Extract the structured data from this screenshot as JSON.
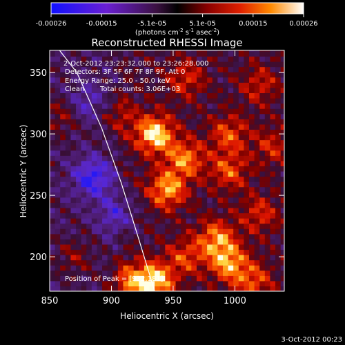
{
  "colorbar": {
    "ticks": [
      "-0.00026",
      "-0.00015",
      "-5.1e-05",
      "5.1e-05",
      "0.00015",
      "0.00026"
    ],
    "units_prefix": "(photons cm",
    "units_sup1": "-2",
    "units_mid": " s",
    "units_sup2": "-1",
    "units_suffix": " asec",
    "units_sup3": "-2",
    "units_close": ")",
    "colors": [
      "#1010ff",
      "#6a1fd2",
      "#4a1a5a",
      "#2a0000",
      "#8a0000",
      "#e01000",
      "#ff7a00",
      "#ffd040",
      "#ffffff"
    ]
  },
  "chart_data": {
    "type": "heatmap",
    "title": "Reconstructed RHESSI Image",
    "xlabel": "Heliocentric X (arcsec)",
    "ylabel": "Heliocentric Y (arcsec)",
    "xlim": [
      850,
      1040
    ],
    "ylim": [
      172,
      368
    ],
    "x_ticks": [
      850,
      900,
      950,
      1000
    ],
    "y_ticks": [
      200,
      250,
      300,
      350
    ],
    "value_range": [
      -0.00026,
      0.00026
    ],
    "limb_curve": [
      [
        935,
        172
      ],
      [
        922,
        215
      ],
      [
        908,
        260
      ],
      [
        892,
        305
      ],
      [
        872,
        350
      ],
      [
        858,
        368
      ]
    ],
    "peak_position": [
      932,
      181
    ],
    "annotations": {
      "time": "2-Oct-2012 23:23:32.000 to 23:26:28.000",
      "detectors": "Detectors: 3F 5F 6F 7F 8F 9F, Att 0",
      "energy": "Energy Range: 25.0 - 50.0 keV",
      "algorithm": "Clean",
      "counts": "Total counts: 3.06E+03",
      "peak": "Position of Peak = [932,181]"
    },
    "hotspots": [
      {
        "x": 935,
        "y": 300,
        "v": 1.0
      },
      {
        "x": 960,
        "y": 280,
        "v": 0.7
      },
      {
        "x": 945,
        "y": 255,
        "v": 0.8
      },
      {
        "x": 995,
        "y": 270,
        "v": 0.55
      },
      {
        "x": 995,
        "y": 300,
        "v": 0.55
      },
      {
        "x": 1020,
        "y": 235,
        "v": 0.45
      },
      {
        "x": 985,
        "y": 215,
        "v": 0.7
      },
      {
        "x": 995,
        "y": 195,
        "v": 0.75
      },
      {
        "x": 935,
        "y": 180,
        "v": 0.95
      },
      {
        "x": 960,
        "y": 200,
        "v": 0.5
      },
      {
        "x": 960,
        "y": 345,
        "v": 0.45
      },
      {
        "x": 1020,
        "y": 340,
        "v": 0.4
      },
      {
        "x": 1030,
        "y": 290,
        "v": 0.4
      },
      {
        "x": 905,
        "y": 315,
        "v": 0.35
      },
      {
        "x": 915,
        "y": 180,
        "v": 0.6
      },
      {
        "x": 1015,
        "y": 180,
        "v": 0.55
      },
      {
        "x": 870,
        "y": 200,
        "v": 0.3
      },
      {
        "x": 860,
        "y": 315,
        "v": 0.35
      },
      {
        "x": 885,
        "y": 265,
        "v": -0.7
      },
      {
        "x": 905,
        "y": 235,
        "v": -0.45
      },
      {
        "x": 880,
        "y": 325,
        "v": -0.4
      }
    ]
  },
  "footer": {
    "date": "3-Oct-2012 00:23"
  }
}
